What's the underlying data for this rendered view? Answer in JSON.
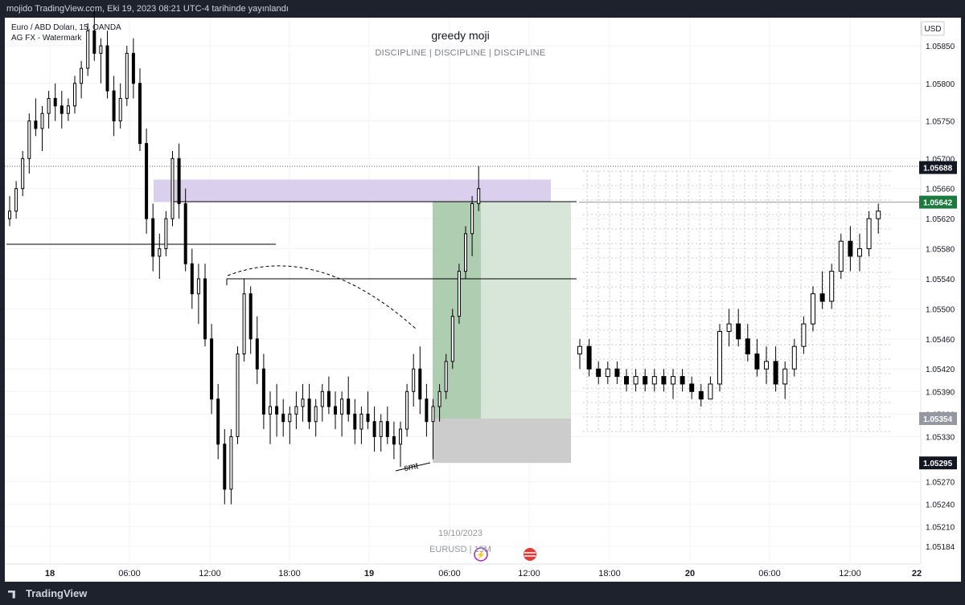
{
  "header": {
    "publisher": "mojido TradingView.com, Eki 19, 2023 08:21 UTC-4 tarihinde yayınlandı"
  },
  "legend": {
    "symbol_line": "Euro / ABD Doları, 15, OANDA",
    "indicator_line": "AG FX - Watermark"
  },
  "watermark": {
    "title": "greedy moji",
    "subtitle": "DISCIPLINE   |   DISCIPLINE   |   DISCIPLINE",
    "date": "19/10/2023",
    "symbol": "EURUSD  |  15M"
  },
  "footer": {
    "brand": "TradingView"
  },
  "chart_data": {
    "type": "candlestick",
    "currency_label": "USD",
    "y_ticks": [
      1.0585,
      1.058,
      1.0575,
      1.057,
      1.0566,
      1.0562,
      1.0558,
      1.0554,
      1.055,
      1.0546,
      1.0542,
      1.0539,
      1.0536,
      1.0533,
      1.0527,
      1.0524,
      1.0521,
      1.05184
    ],
    "y_tick_labels": [
      "1.05850",
      "1.05800",
      "1.05750",
      "1.05700",
      "1.05660",
      "1.05620",
      "1.05580",
      "1.05540",
      "1.05500",
      "1.05460",
      "1.05420",
      "1.05390",
      "1.05360",
      "1.05330",
      "1.05270",
      "1.05240",
      "1.05210",
      "1.05184"
    ],
    "x_ticks": [
      "18",
      "06:00",
      "12:00",
      "18:00",
      "19",
      "06:00",
      "12:00",
      "18:00",
      "20",
      "06:00",
      "12:00",
      "22"
    ],
    "price_labels": [
      {
        "value": 1.05688,
        "text": "1.05688",
        "style": "dark"
      },
      {
        "value": 1.05642,
        "text": "1.05642",
        "style": "green"
      },
      {
        "value": 1.05354,
        "text": "1.05354",
        "style": "gray"
      },
      {
        "value": 1.05295,
        "text": "1.05295",
        "style": "dark"
      }
    ],
    "annotation": "smt",
    "historical_candles": [
      [
        1.0562,
        1.0565,
        1.0561,
        1.0563
      ],
      [
        1.0563,
        1.0567,
        1.0562,
        1.0566
      ],
      [
        1.0566,
        1.0571,
        1.0565,
        1.057
      ],
      [
        1.057,
        1.0576,
        1.0568,
        1.0575
      ],
      [
        1.0575,
        1.0578,
        1.0573,
        1.0574
      ],
      [
        1.0574,
        1.0577,
        1.0571,
        1.0576
      ],
      [
        1.0576,
        1.0579,
        1.0574,
        1.0578
      ],
      [
        1.0578,
        1.058,
        1.0575,
        1.0577
      ],
      [
        1.0577,
        1.0579,
        1.0574,
        1.0576
      ],
      [
        1.0576,
        1.0578,
        1.0575,
        1.0577
      ],
      [
        1.0577,
        1.0581,
        1.0576,
        1.058
      ],
      [
        1.058,
        1.0583,
        1.0578,
        1.0582
      ],
      [
        1.0582,
        1.0588,
        1.0581,
        1.0587
      ],
      [
        1.0587,
        1.059,
        1.0583,
        1.0584
      ],
      [
        1.0584,
        1.0586,
        1.058,
        1.0585
      ],
      [
        1.0585,
        1.0587,
        1.0578,
        1.0579
      ],
      [
        1.0579,
        1.0581,
        1.0573,
        1.0575
      ],
      [
        1.0575,
        1.058,
        1.0574,
        1.0578
      ],
      [
        1.0578,
        1.0585,
        1.0577,
        1.0584
      ],
      [
        1.0584,
        1.0586,
        1.0578,
        1.058
      ],
      [
        1.058,
        1.0582,
        1.0571,
        1.0572
      ],
      [
        1.0572,
        1.0574,
        1.056,
        1.0562
      ],
      [
        1.0562,
        1.0564,
        1.0555,
        1.0557
      ],
      [
        1.0557,
        1.056,
        1.0554,
        1.0558
      ],
      [
        1.0558,
        1.0563,
        1.0557,
        1.0562
      ],
      [
        1.0562,
        1.0571,
        1.0561,
        1.057
      ],
      [
        1.057,
        1.0572,
        1.0562,
        1.0564
      ],
      [
        1.0564,
        1.0566,
        1.0555,
        1.0556
      ],
      [
        1.0556,
        1.0558,
        1.055,
        1.0552
      ],
      [
        1.0552,
        1.0556,
        1.0548,
        1.0554
      ],
      [
        1.0554,
        1.0556,
        1.0545,
        1.0546
      ],
      [
        1.0546,
        1.0548,
        1.0536,
        1.0538
      ],
      [
        1.0538,
        1.054,
        1.053,
        1.0532
      ],
      [
        1.0532,
        1.0534,
        1.0524,
        1.0526
      ],
      [
        1.0526,
        1.0534,
        1.0524,
        1.0533
      ],
      [
        1.0533,
        1.0545,
        1.0532,
        1.0544
      ],
      [
        1.0544,
        1.0554,
        1.0543,
        1.0552
      ],
      [
        1.0552,
        1.0553,
        1.0544,
        1.0546
      ],
      [
        1.0546,
        1.0549,
        1.054,
        1.0542
      ],
      [
        1.0542,
        1.0544,
        1.0534,
        1.0536
      ],
      [
        1.0536,
        1.0539,
        1.0532,
        1.0537
      ],
      [
        1.0537,
        1.054,
        1.0533,
        1.0536
      ],
      [
        1.0536,
        1.0538,
        1.0533,
        1.0535
      ],
      [
        1.0535,
        1.0537,
        1.0532,
        1.0536
      ],
      [
        1.0536,
        1.0539,
        1.0534,
        1.0537
      ],
      [
        1.0537,
        1.054,
        1.0535,
        1.0538
      ],
      [
        1.0538,
        1.054,
        1.0534,
        1.0535
      ],
      [
        1.0535,
        1.0538,
        1.0533,
        1.0537
      ],
      [
        1.0537,
        1.054,
        1.0535,
        1.0539
      ],
      [
        1.0539,
        1.0541,
        1.0536,
        1.0537
      ],
      [
        1.0537,
        1.0539,
        1.0534,
        1.0536
      ],
      [
        1.0536,
        1.0539,
        1.0533,
        1.0538
      ],
      [
        1.0538,
        1.0541,
        1.0535,
        1.0536
      ],
      [
        1.0536,
        1.0538,
        1.0532,
        1.0534
      ],
      [
        1.0534,
        1.0537,
        1.0532,
        1.0536
      ],
      [
        1.0536,
        1.0539,
        1.0534,
        1.0535
      ],
      [
        1.0535,
        1.0537,
        1.0531,
        1.0533
      ],
      [
        1.0533,
        1.0536,
        1.0531,
        1.0535
      ],
      [
        1.0535,
        1.0537,
        1.0532,
        1.0533
      ],
      [
        1.0533,
        1.0535,
        1.053,
        1.0532
      ],
      [
        1.0532,
        1.0535,
        1.0529,
        1.0534
      ],
      [
        1.0534,
        1.054,
        1.0533,
        1.0539
      ],
      [
        1.0539,
        1.0544,
        1.0537,
        1.0542
      ],
      [
        1.0542,
        1.0545,
        1.0536,
        1.0538
      ],
      [
        1.0538,
        1.054,
        1.0533,
        1.0535
      ],
      [
        1.0535,
        1.0538,
        1.053,
        1.0537
      ],
      [
        1.0537,
        1.054,
        1.0535,
        1.0539
      ],
      [
        1.0539,
        1.0544,
        1.0538,
        1.0543
      ],
      [
        1.0543,
        1.055,
        1.0542,
        1.0549
      ],
      [
        1.0549,
        1.0556,
        1.0548,
        1.0555
      ],
      [
        1.0555,
        1.0561,
        1.0554,
        1.056
      ],
      [
        1.056,
        1.0565,
        1.0557,
        1.0564
      ],
      [
        1.0564,
        1.0569,
        1.0563,
        1.0566
      ]
    ],
    "projection_candles": [
      [
        1.0544,
        1.0546,
        1.0542,
        1.0545
      ],
      [
        1.0545,
        1.0546,
        1.0541,
        1.0542
      ],
      [
        1.0542,
        1.0543,
        1.054,
        1.0541
      ],
      [
        1.0541,
        1.0543,
        1.054,
        1.0542
      ],
      [
        1.0542,
        1.0543,
        1.054,
        1.0541
      ],
      [
        1.0541,
        1.0542,
        1.0539,
        1.054
      ],
      [
        1.054,
        1.0542,
        1.0539,
        1.0541
      ],
      [
        1.0541,
        1.0542,
        1.0539,
        1.054
      ],
      [
        1.054,
        1.0542,
        1.0539,
        1.0541
      ],
      [
        1.0541,
        1.0542,
        1.0539,
        1.054
      ],
      [
        1.054,
        1.0542,
        1.0538,
        1.0541
      ],
      [
        1.0541,
        1.0542,
        1.0539,
        1.054
      ],
      [
        1.054,
        1.0541,
        1.0538,
        1.0539
      ],
      [
        1.0539,
        1.054,
        1.0537,
        1.0538
      ],
      [
        1.0538,
        1.0541,
        1.0538,
        1.054
      ],
      [
        1.054,
        1.0548,
        1.0539,
        1.0547
      ],
      [
        1.0547,
        1.055,
        1.0545,
        1.0548
      ],
      [
        1.0548,
        1.055,
        1.0545,
        1.0546
      ],
      [
        1.0546,
        1.0548,
        1.0543,
        1.0544
      ],
      [
        1.0544,
        1.0546,
        1.0541,
        1.0542
      ],
      [
        1.0542,
        1.0545,
        1.054,
        1.0543
      ],
      [
        1.0543,
        1.0545,
        1.0539,
        1.054
      ],
      [
        1.054,
        1.0543,
        1.0538,
        1.0542
      ],
      [
        1.0542,
        1.0546,
        1.0541,
        1.0545
      ],
      [
        1.0545,
        1.0549,
        1.0544,
        1.0548
      ],
      [
        1.0548,
        1.0553,
        1.0547,
        1.0552
      ],
      [
        1.0552,
        1.0555,
        1.055,
        1.0551
      ],
      [
        1.0551,
        1.0556,
        1.055,
        1.0555
      ],
      [
        1.0555,
        1.056,
        1.0554,
        1.0559
      ],
      [
        1.0559,
        1.0561,
        1.0555,
        1.0557
      ],
      [
        1.0557,
        1.056,
        1.0555,
        1.0558
      ],
      [
        1.0558,
        1.0563,
        1.0557,
        1.0562
      ],
      [
        1.0562,
        1.0564,
        1.056,
        1.0563
      ]
    ]
  }
}
